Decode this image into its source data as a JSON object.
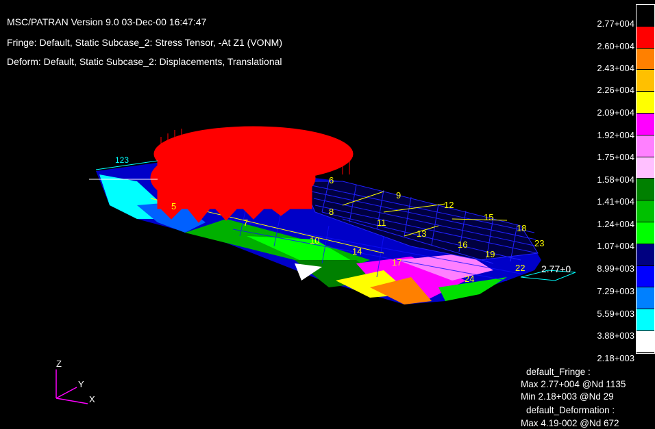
{
  "header": {
    "line1": "MSC/PATRAN Version 9.0 03-Dec-00 16:47:47",
    "line2": "Fringe: Default, Static Subcase_2: Stress Tensor, -At Z1 (VONM)",
    "line3": "Deform: Default, Static Subcase_2: Displacements, Translational"
  },
  "legend": {
    "labels": [
      "2.77+004",
      "2.60+004",
      "2.43+004",
      "2.26+004",
      "2.09+004",
      "1.92+004",
      "1.75+004",
      "1.58+004",
      "1.41+004",
      "1.24+004",
      "1.07+004",
      "8.99+003",
      "7.29+003",
      "5.59+003",
      "3.88+003",
      "2.18+003"
    ],
    "colors": [
      "#000000",
      "#ff0000",
      "#ff8000",
      "#ffc000",
      "#ffff00",
      "#ff00ff",
      "#ff80ff",
      "#ffc0ff",
      "#008000",
      "#00c000",
      "#00ff00",
      "#000080",
      "#0000ff",
      "#0080ff",
      "#00ffff",
      "#ffffff"
    ]
  },
  "info": {
    "fringe_title": "default_Fringe :",
    "fringe_max": "Max 2.77+004 @Nd 1135",
    "fringe_min": "Min 2.18+003 @Nd 29",
    "deform_title": "default_Deformation :",
    "deform_max": "Max 4.19-002 @Nd 672"
  },
  "axes": {
    "z": "Z",
    "y": "Y",
    "x": "X"
  },
  "model": {
    "node_labels": [
      "5",
      "6",
      "7",
      "8",
      "9",
      "10",
      "11",
      "12",
      "13",
      "14",
      "15",
      "16",
      "17",
      "18",
      "19",
      "22",
      "23",
      "24"
    ],
    "max_marker": "2.77+0"
  }
}
